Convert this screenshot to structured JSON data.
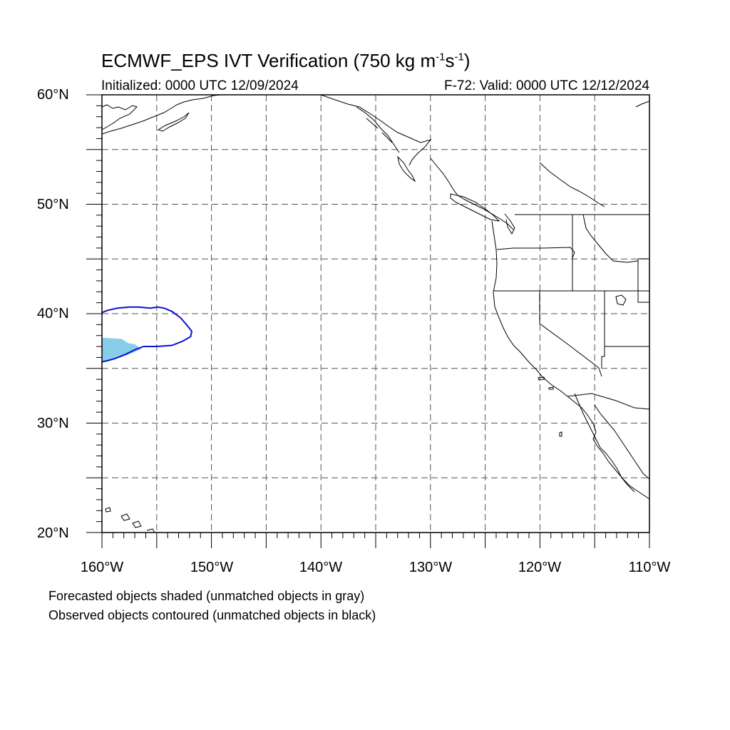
{
  "title": {
    "prefix": "ECMWF_EPS IVT Verification (750 kg m",
    "exp1": "-1",
    "mid": "s",
    "exp2": "-1",
    "suffix": ")"
  },
  "initialized": "Initialized: 0000 UTC 12/09/2024",
  "valid": "F-72: Valid: 0000 UTC 12/12/2024",
  "lat_labels": [
    "60°N",
    "50°N",
    "40°N",
    "30°N",
    "20°N"
  ],
  "lon_labels": [
    "160°W",
    "150°W",
    "140°W",
    "130°W",
    "120°W",
    "110°W"
  ],
  "notes": [
    "Forecasted objects shaded (unmatched objects in gray)",
    "Observed objects contoured (unmatched objects in black)"
  ],
  "map": {
    "projection": "cylindrical equidistant",
    "lon_range": [
      -160,
      -110
    ],
    "lat_range": [
      20,
      60
    ],
    "gridline_spacing_deg": 5,
    "gridlines": "dashed gray",
    "colors": {
      "forecast_object": "#87ceeb",
      "observed_object": "#1010d0",
      "coastline": "#000000"
    },
    "forecast_object_lonlat": [
      [
        -160,
        37.8
      ],
      [
        -158.2,
        37.7
      ],
      [
        -157.6,
        37.3
      ],
      [
        -157.0,
        37.2
      ],
      [
        -156.4,
        36.8
      ],
      [
        -157.0,
        36.5
      ],
      [
        -157.8,
        36.2
      ],
      [
        -158.6,
        35.9
      ],
      [
        -160,
        35.6
      ]
    ],
    "observed_object_lonlat": [
      [
        -160,
        40.1
      ],
      [
        -159.5,
        40.3
      ],
      [
        -158.6,
        40.5
      ],
      [
        -157.5,
        40.6
      ],
      [
        -156.6,
        40.6
      ],
      [
        -155.6,
        40.5
      ],
      [
        -154.9,
        40.6
      ],
      [
        -154.3,
        40.5
      ],
      [
        -153.6,
        40.2
      ],
      [
        -152.8,
        39.6
      ],
      [
        -152.2,
        38.9
      ],
      [
        -151.8,
        38.4
      ],
      [
        -151.9,
        37.9
      ],
      [
        -152.6,
        37.5
      ],
      [
        -153.6,
        37.1
      ],
      [
        -155.0,
        37.0
      ],
      [
        -156.2,
        37.0
      ],
      [
        -157.0,
        36.7
      ],
      [
        -157.8,
        36.3
      ],
      [
        -158.8,
        35.9
      ],
      [
        -159.5,
        35.7
      ],
      [
        -160,
        35.6
      ]
    ]
  }
}
